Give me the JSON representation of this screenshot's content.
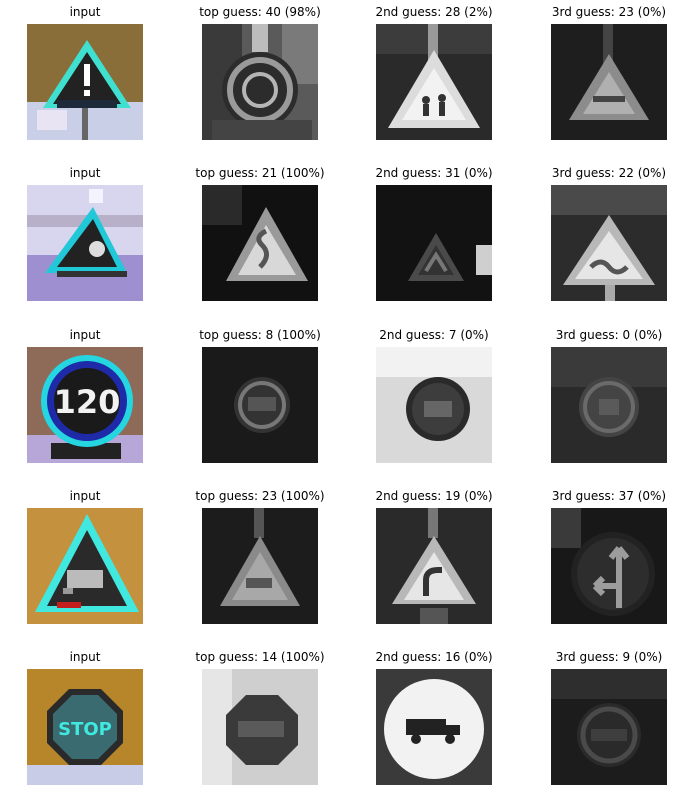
{
  "rows": [
    {
      "cells": [
        {
          "title": "input",
          "icon": "warning-exclamation-sign-icon",
          "mode": "color"
        },
        {
          "title": "top guess: 40 (98%)",
          "icon": "roundabout-sign-icon",
          "mode": "gray"
        },
        {
          "title": "2nd guess: 28 (2%)",
          "icon": "children-crossing-sign-icon",
          "mode": "gray"
        },
        {
          "title": "3rd guess: 23 (0%)",
          "icon": "slippery-road-sign-icon",
          "mode": "gray"
        }
      ]
    },
    {
      "cells": [
        {
          "title": "input",
          "icon": "slippery-road-sign-icon",
          "mode": "color"
        },
        {
          "title": "top guess: 21 (100%)",
          "icon": "double-curve-sign-icon",
          "mode": "gray"
        },
        {
          "title": "2nd guess: 31 (0%)",
          "icon": "wild-animals-sign-icon",
          "mode": "gray"
        },
        {
          "title": "3rd guess: 22 (0%)",
          "icon": "bumpy-road-sign-icon",
          "mode": "gray"
        }
      ]
    },
    {
      "cells": [
        {
          "title": "input",
          "icon": "speed-limit-120-sign-icon",
          "mode": "color",
          "text": "120"
        },
        {
          "title": "top guess: 8 (100%)",
          "icon": "speed-limit-120-sign-icon",
          "mode": "gray"
        },
        {
          "title": "2nd guess: 7 (0%)",
          "icon": "speed-limit-100-sign-icon",
          "mode": "gray"
        },
        {
          "title": "3rd guess: 0 (0%)",
          "icon": "speed-limit-20-sign-icon",
          "mode": "gray"
        }
      ]
    },
    {
      "cells": [
        {
          "title": "input",
          "icon": "slippery-road-sign-icon",
          "mode": "color"
        },
        {
          "title": "top guess: 23 (100%)",
          "icon": "slippery-road-sign-icon",
          "mode": "gray"
        },
        {
          "title": "2nd guess: 19 (0%)",
          "icon": "dangerous-curve-left-sign-icon",
          "mode": "gray"
        },
        {
          "title": "3rd guess: 37 (0%)",
          "icon": "go-straight-or-left-sign-icon",
          "mode": "gray"
        }
      ]
    },
    {
      "cells": [
        {
          "title": "input",
          "icon": "stop-sign-icon",
          "mode": "color",
          "text": "STOP"
        },
        {
          "title": "top guess: 14 (100%)",
          "icon": "stop-sign-icon",
          "mode": "gray"
        },
        {
          "title": "2nd guess: 16 (0%)",
          "icon": "no-trucks-sign-icon",
          "mode": "gray"
        },
        {
          "title": "3rd guess: 9 (0%)",
          "icon": "no-passing-sign-icon",
          "mode": "gray"
        }
      ]
    }
  ]
}
